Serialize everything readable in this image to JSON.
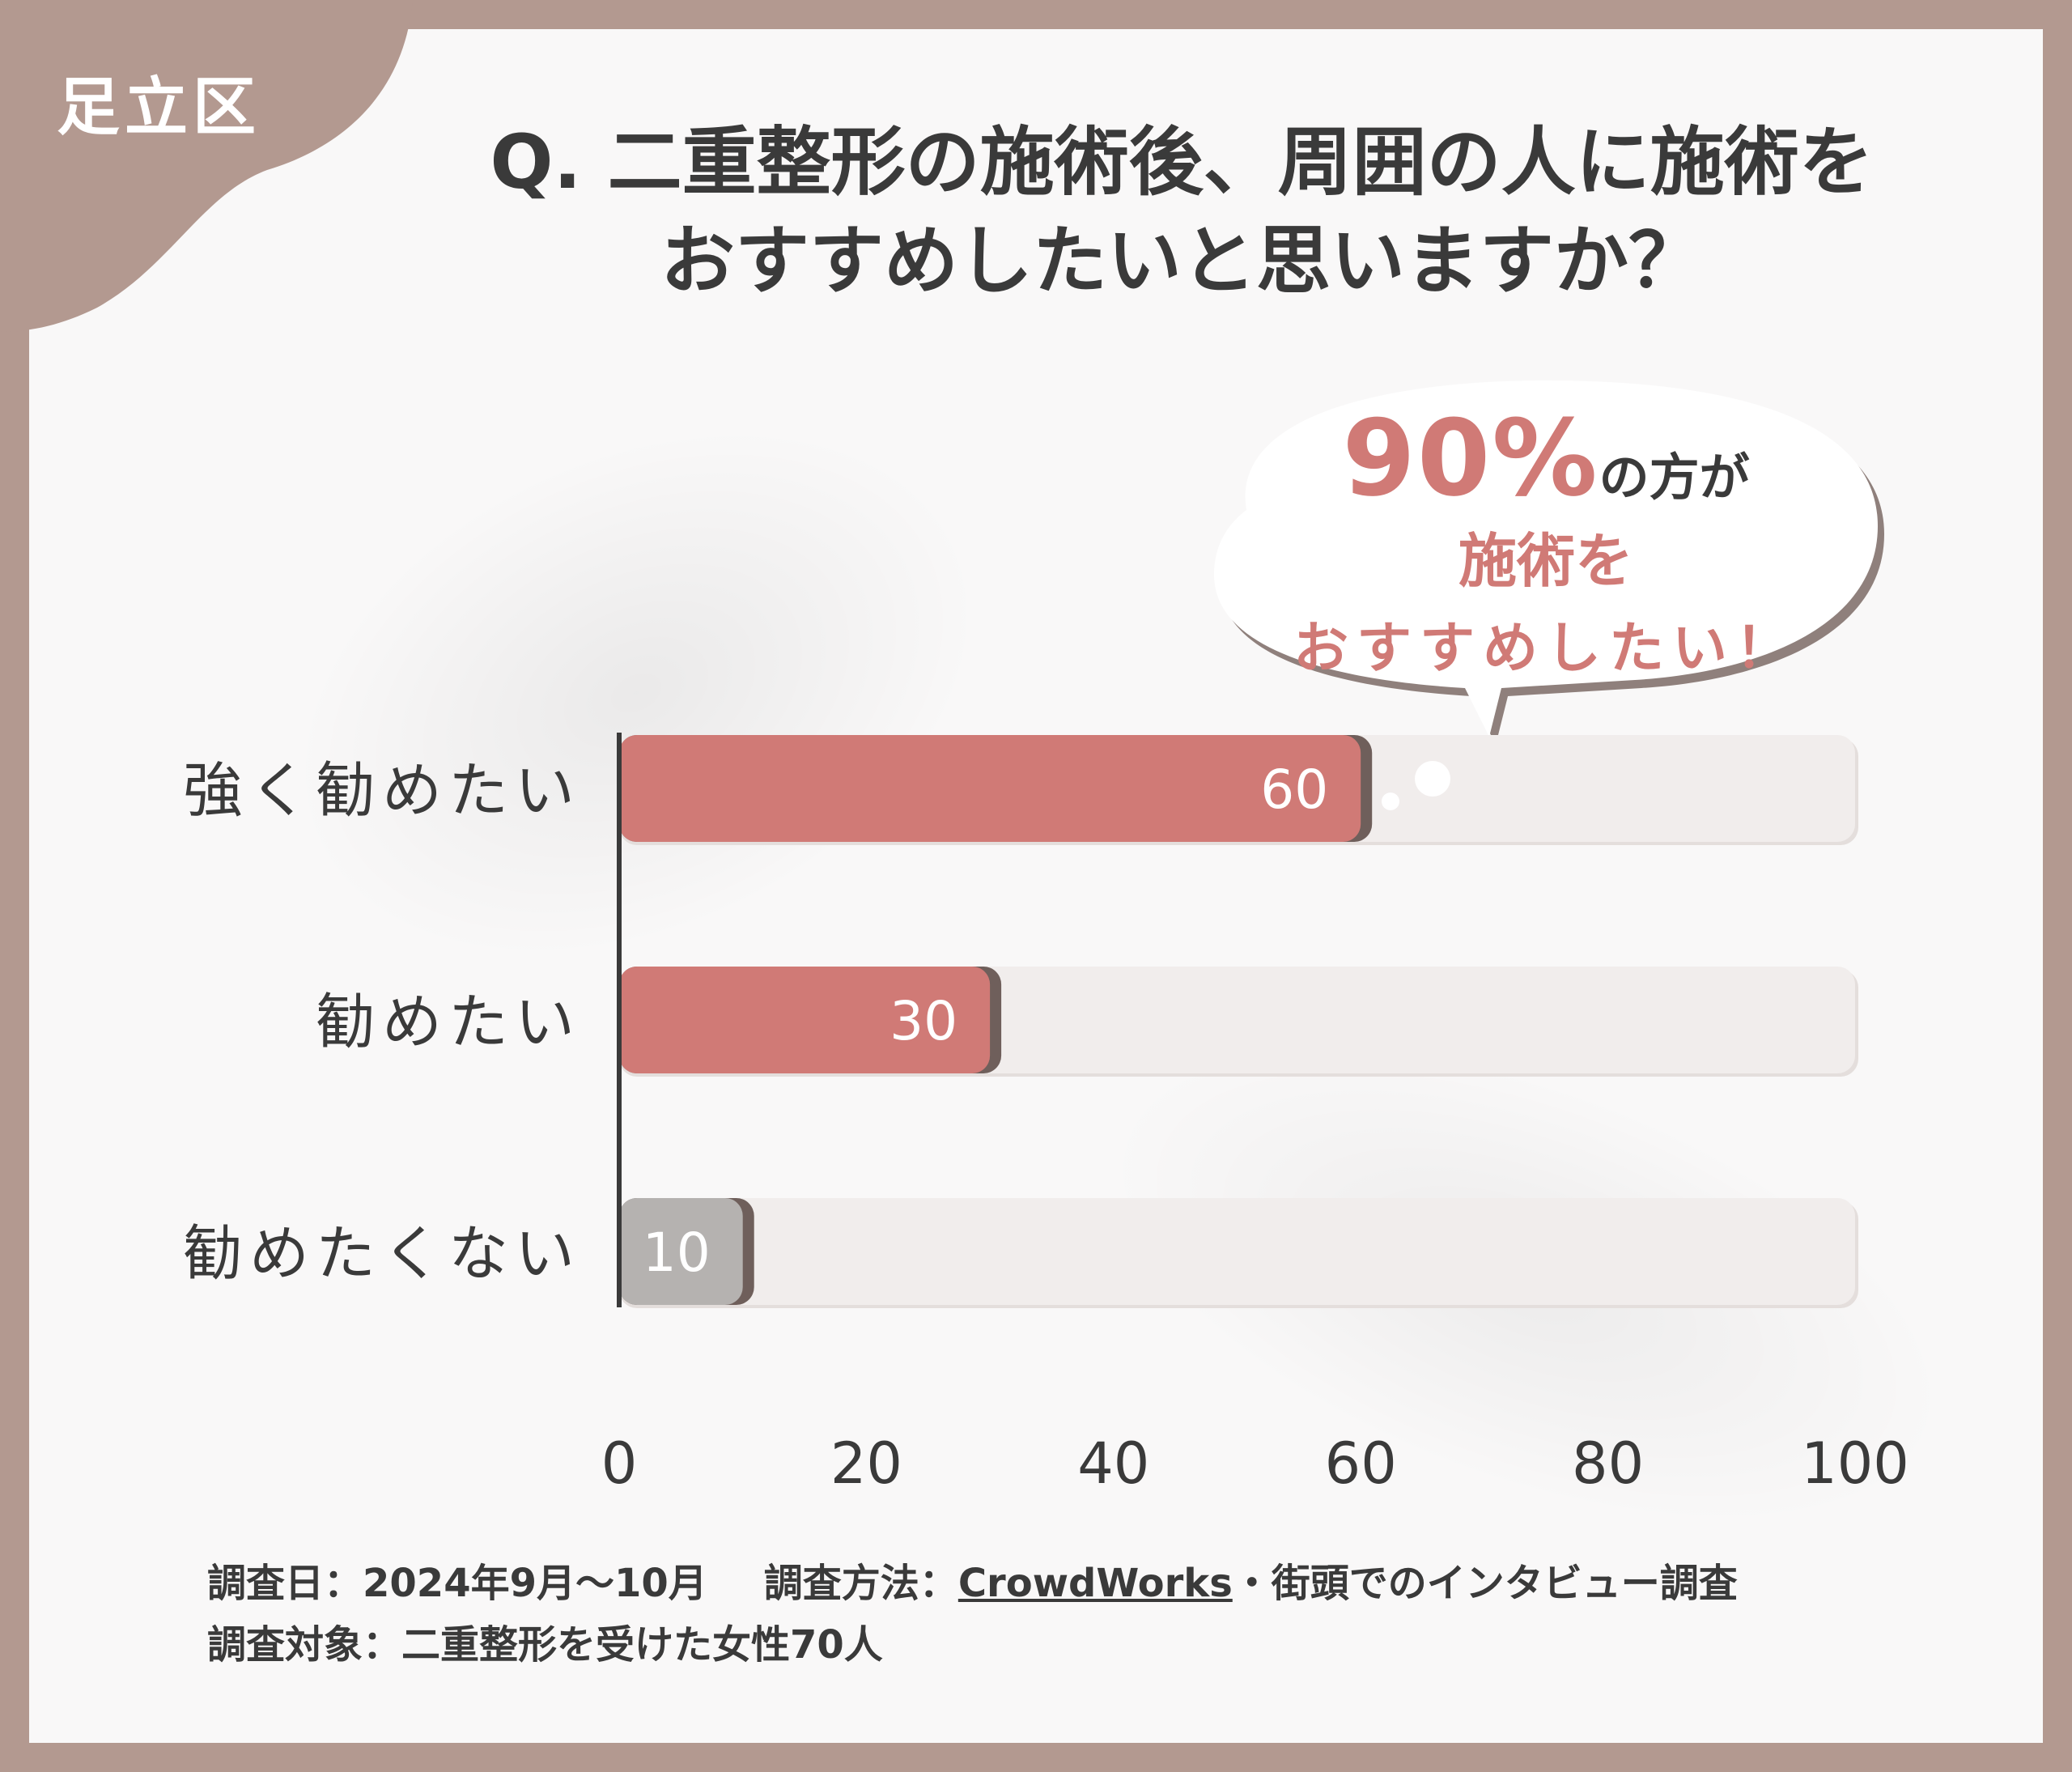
{
  "region": "足立区",
  "title": {
    "line1": "Q. 二重整形の施術後、周囲の人に施術を",
    "line2": "おすすめしたいと思いますか？"
  },
  "callout": {
    "big": "90%",
    "suffix": "の方が",
    "mid": "施術を",
    "low": "おすすめしたい！"
  },
  "chart_data": {
    "type": "bar",
    "orientation": "horizontal",
    "categories": [
      "強く勧めたい",
      "勧めたい",
      "勧めたくない"
    ],
    "values": [
      60,
      30,
      10
    ],
    "bar_colors": [
      "#d07a76",
      "#d07a76",
      "#b5b2b0"
    ],
    "xlim": [
      0,
      100
    ],
    "xticks": [
      "0",
      "20",
      "40",
      "60",
      "80",
      "100"
    ]
  },
  "footer": {
    "date_label": "調査日：2024年9月〜10月",
    "method_label": "調査方法：",
    "method_link": "CrowdWorks",
    "method_rest": "・街頭でのインタビュー調査",
    "target_label": "調査対象：二重整形を受けた女性70人"
  },
  "colors": {
    "frame": "#b39990",
    "accent": "#d07a76",
    "track": "#f1edec",
    "text": "#3a3a3a"
  }
}
